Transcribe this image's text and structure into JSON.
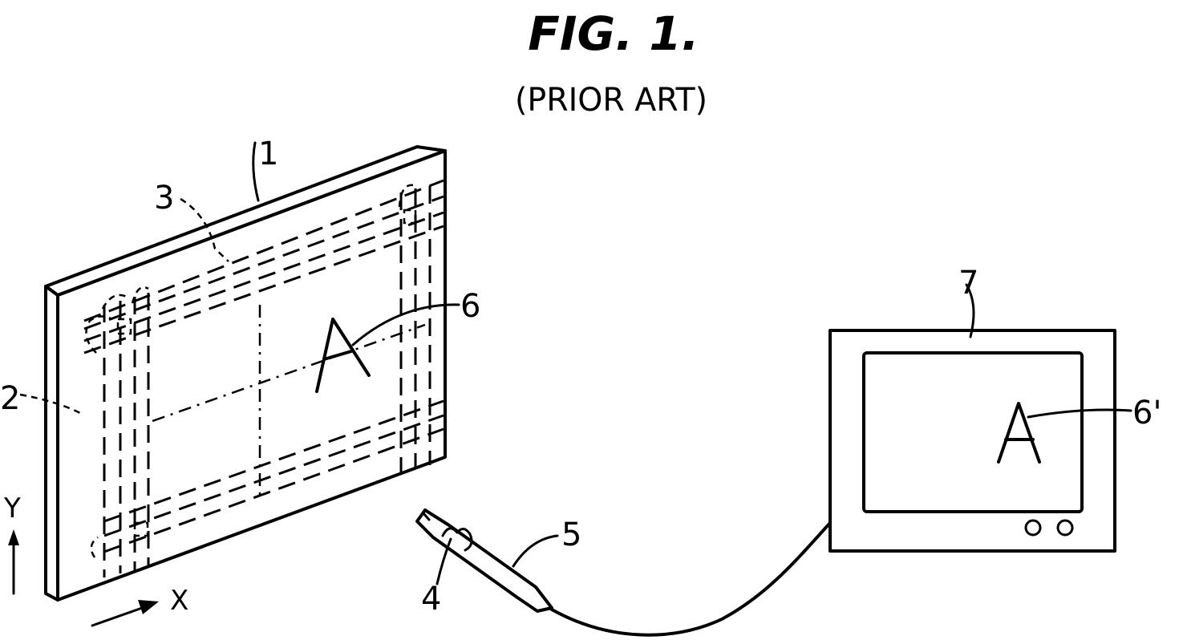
{
  "figure": {
    "title": "FIG. 1.",
    "subtitle": "(PRIOR ART)"
  },
  "tablet": {
    "ref_panel": "1",
    "ref_x_conductor": "2",
    "ref_y_conductor": "3",
    "ref_input": "6",
    "drawn_letter": "A"
  },
  "pen": {
    "ref_coil": "4",
    "ref_pen": "5"
  },
  "display": {
    "ref_monitor": "7",
    "ref_display_char": "6'",
    "display_letter": "A"
  },
  "axes": {
    "x_label": "X",
    "y_label": "Y"
  }
}
